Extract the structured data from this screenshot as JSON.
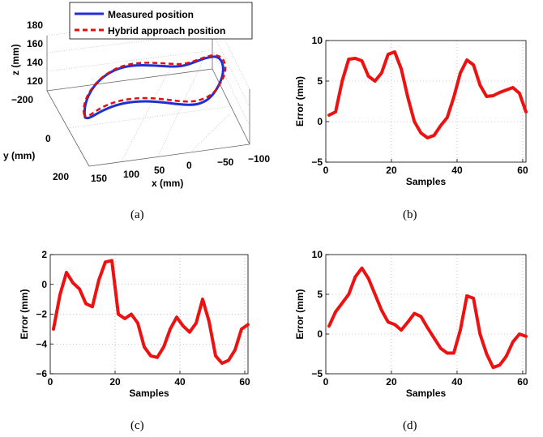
{
  "captions": [
    "(a)",
    "(b)",
    "(c)",
    "(d)"
  ],
  "colors": {
    "measured": "#1f2fd6",
    "hybrid": "#e01010",
    "error": "#ee1111"
  },
  "panel_a": {
    "legend": [
      "Measured position",
      "Hybrid approach position"
    ],
    "xlabel": "x (mm)",
    "ylabel": "y (mm)",
    "zlabel": "z (mm)",
    "x_ticks": [
      "150",
      "100",
      "50",
      "0",
      "−50",
      "−100"
    ],
    "y_ticks": [
      "−200",
      "0",
      "200"
    ],
    "z_ticks": [
      "180",
      "160",
      "140",
      "120"
    ]
  },
  "chart_data": [
    {
      "panel": "(a)",
      "type": "line",
      "projection": "3d",
      "legend": [
        "Measured position",
        "Hybrid approach position"
      ],
      "xlabel": "x (mm)",
      "ylabel": "y (mm)",
      "zlabel": "z (mm)",
      "xlim": [
        -100,
        150
      ],
      "ylim": [
        -200,
        200
      ],
      "zlim": [
        120,
        180
      ],
      "grid": true,
      "legend_placement": "top"
    },
    {
      "panel": "(b)",
      "type": "line",
      "xlabel": "Samples",
      "ylabel": "Error (mm)",
      "xlim": [
        0,
        61
      ],
      "ylim": [
        -5,
        10
      ],
      "xticks": [
        0,
        20,
        40,
        60
      ],
      "yticks": [
        -5,
        0,
        5,
        10
      ],
      "grid": true,
      "x": [
        1,
        3,
        5,
        7,
        9,
        11,
        13,
        15,
        17,
        19,
        21,
        23,
        25,
        27,
        29,
        31,
        33,
        35,
        37,
        39,
        41,
        43,
        45,
        47,
        49,
        51,
        53,
        55,
        57,
        59,
        61
      ],
      "y": [
        0.8,
        1.2,
        5,
        7.7,
        7.8,
        7.5,
        5.6,
        5,
        6,
        8.3,
        8.6,
        6.5,
        3,
        0,
        -1.4,
        -2,
        -1.7,
        -0.5,
        0.5,
        3,
        6,
        7.6,
        7,
        4.5,
        3.1,
        3.2,
        3.6,
        3.9,
        4.2,
        3.5,
        1.2
      ]
    },
    {
      "panel": "(c)",
      "type": "line",
      "xlabel": "Samples",
      "ylabel": "Error (mm)",
      "xlim": [
        0,
        61
      ],
      "ylim": [
        -6,
        2
      ],
      "xticks": [
        0,
        20,
        40,
        60
      ],
      "yticks": [
        -6,
        -4,
        -2,
        0,
        2
      ],
      "grid": true,
      "x": [
        1,
        3,
        5,
        7,
        9,
        11,
        13,
        15,
        17,
        19,
        21,
        23,
        25,
        27,
        29,
        31,
        33,
        35,
        37,
        39,
        41,
        43,
        45,
        47,
        49,
        51,
        53,
        55,
        57,
        59,
        61
      ],
      "y": [
        -3,
        -0.7,
        0.8,
        0.1,
        -0.3,
        -1.3,
        -1.5,
        0.3,
        1.5,
        1.6,
        -2,
        -2.3,
        -2,
        -2.6,
        -4.2,
        -4.8,
        -4.9,
        -4.2,
        -3,
        -2.2,
        -2.8,
        -3.2,
        -2.6,
        -1,
        -2.5,
        -4.8,
        -5.3,
        -5.1,
        -4.4,
        -3,
        -2.7
      ]
    },
    {
      "panel": "(d)",
      "type": "line",
      "xlabel": "Samples",
      "ylabel": "Error (mm)",
      "xlim": [
        0,
        61
      ],
      "ylim": [
        -5,
        10
      ],
      "xticks": [
        0,
        20,
        40,
        60
      ],
      "yticks": [
        -5,
        0,
        5,
        10
      ],
      "grid": true,
      "x": [
        1,
        3,
        5,
        7,
        9,
        11,
        13,
        15,
        17,
        19,
        21,
        23,
        25,
        27,
        29,
        31,
        33,
        35,
        37,
        39,
        41,
        43,
        45,
        47,
        49,
        51,
        53,
        55,
        57,
        59,
        61
      ],
      "y": [
        1,
        2.8,
        3.9,
        5,
        7.2,
        8.3,
        7,
        5,
        3,
        1.5,
        1.2,
        0.5,
        1.5,
        2.6,
        2.2,
        0.8,
        -0.5,
        -1.8,
        -2.4,
        -2.4,
        0.5,
        4.8,
        4.5,
        0,
        -2.5,
        -4.2,
        -3.9,
        -2.8,
        -1,
        0,
        -0.3
      ]
    }
  ]
}
